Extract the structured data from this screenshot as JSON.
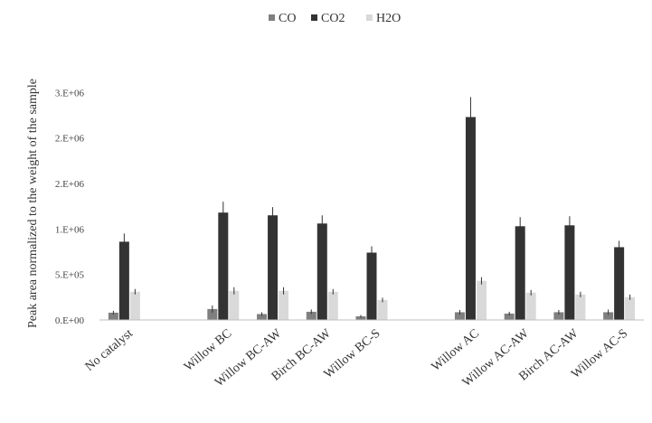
{
  "chart_data": {
    "type": "bar",
    "title": "",
    "xlabel": "",
    "ylabel": "Peak area normalized to the weight of the sample",
    "ylim": [
      0,
      3000000
    ],
    "yticks": [
      {
        "value": 0,
        "label": "0.E+00"
      },
      {
        "value": 500000,
        "label": "5.E+05"
      },
      {
        "value": 1000000,
        "label": "1.E+06"
      },
      {
        "value": 1500000,
        "label": "2.E+06"
      },
      {
        "value": 2000000,
        "label": "2.E+06"
      },
      {
        "value": 2500000,
        "label": "3.E+06"
      }
    ],
    "legend_position": "top-center",
    "categories": [
      "No catalyst",
      "",
      "Willow BC",
      "Willow BC-AW",
      "Birch BC-AW",
      "Willow BC-S",
      "",
      "Willow AC",
      "Willow AC-AW",
      "Birch AC-AW",
      "Willow AC-S"
    ],
    "series": [
      {
        "name": "CO",
        "color": "#7f7f7f",
        "values": [
          80000,
          null,
          120000,
          65000,
          90000,
          40000,
          null,
          85000,
          70000,
          85000,
          85000
        ],
        "errors": [
          20000,
          null,
          40000,
          20000,
          25000,
          15000,
          null,
          25000,
          20000,
          25000,
          30000
        ]
      },
      {
        "name": "CO2",
        "color": "#333333",
        "values": [
          860000,
          null,
          1180000,
          1150000,
          1060000,
          740000,
          null,
          2230000,
          1030000,
          1040000,
          800000
        ],
        "errors": [
          90000,
          null,
          120000,
          90000,
          90000,
          70000,
          null,
          220000,
          100000,
          100000,
          70000
        ]
      },
      {
        "name": "H2O",
        "color": "#d9d9d9",
        "values": [
          310000,
          null,
          320000,
          320000,
          310000,
          220000,
          null,
          430000,
          300000,
          280000,
          250000
        ],
        "errors": [
          30000,
          null,
          40000,
          40000,
          30000,
          25000,
          null,
          40000,
          30000,
          30000,
          30000
        ]
      }
    ]
  }
}
